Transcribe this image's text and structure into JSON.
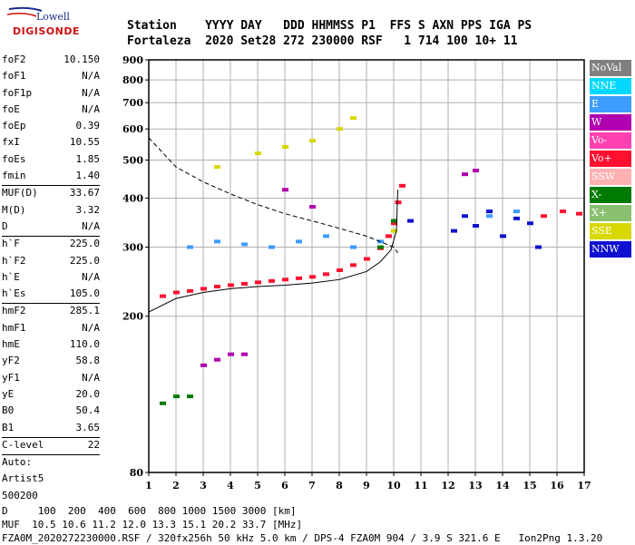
{
  "logo": {
    "line1": "Lowell",
    "line2": "DIGISONDE"
  },
  "header": {
    "line1": "Station    YYYY DAY   DDD HHMMSS P1  FFS S AXN PPS IGA PS",
    "line2": "Fortaleza  2020 Set28 272 230000 RSF   1 714 100 10+ 11"
  },
  "params": [
    {
      "group": [
        {
          "k": "foF2",
          "v": "10.150"
        },
        {
          "k": "foF1",
          "v": "N/A"
        },
        {
          "k": "foF1p",
          "v": "N/A"
        },
        {
          "k": "foE",
          "v": "N/A"
        },
        {
          "k": "foEp",
          "v": "0.39"
        },
        {
          "k": "fxI",
          "v": "10.55"
        },
        {
          "k": "foEs",
          "v": "1.85"
        },
        {
          "k": "fmin",
          "v": "1.40"
        }
      ]
    },
    {
      "group": [
        {
          "k": "MUF(D)",
          "v": "33.67"
        },
        {
          "k": "M(D)",
          "v": "3.32"
        },
        {
          "k": "D",
          "v": "N/A"
        }
      ]
    },
    {
      "group": [
        {
          "k": "h`F",
          "v": "225.0"
        },
        {
          "k": "h`F2",
          "v": "225.0"
        },
        {
          "k": "h`E",
          "v": "N/A"
        },
        {
          "k": "h`Es",
          "v": "105.0"
        }
      ]
    },
    {
      "group": [
        {
          "k": "hmF2",
          "v": "285.1"
        },
        {
          "k": "hmF1",
          "v": "N/A"
        },
        {
          "k": "hmE",
          "v": "110.0"
        },
        {
          "k": "yF2",
          "v": "58.8"
        },
        {
          "k": "yF1",
          "v": "N/A"
        },
        {
          "k": "yE",
          "v": "20.0"
        },
        {
          "k": "B0",
          "v": "50.4"
        },
        {
          "k": "B1",
          "v": "3.65"
        }
      ]
    },
    {
      "group": [
        {
          "k": "C-level",
          "v": "22"
        }
      ]
    },
    {
      "group": [
        {
          "k": "Auto:",
          "v": ""
        },
        {
          "k": "Artist5",
          "v": ""
        },
        {
          "k": "500200",
          "v": ""
        }
      ]
    }
  ],
  "legend": [
    {
      "label": "NoVal",
      "color": "#808080"
    },
    {
      "label": "NNE",
      "color": "#00d8ff"
    },
    {
      "label": "E",
      "color": "#3c9cff"
    },
    {
      "label": "W",
      "color": "#b000b0"
    },
    {
      "label": "Vo-",
      "color": "#ff40b0"
    },
    {
      "label": "Vo+",
      "color": "#ff1030"
    },
    {
      "label": "SSW",
      "color": "#ffb0b0"
    },
    {
      "label": "X-",
      "color": "#007a00"
    },
    {
      "label": "X+",
      "color": "#88c070"
    },
    {
      "label": "SSE",
      "color": "#d8d800"
    },
    {
      "label": "NNW",
      "color": "#1010d0"
    }
  ],
  "footer": {
    "line1": "D     100  200  400  600  800 1000 1500 3000 [km]",
    "line2": "MUF  10.5 10.6 11.2 12.0 13.3 15.1 20.2 33.7 [MHz]",
    "line3": "FZA0M_2020272230000.RSF / 320fx256h 50 kHz 5.0 km / DPS-4 FZA0M 904 / 3.9 S 321.6 E   Ion2Png 1.3.20"
  },
  "chart_data": {
    "type": "scatter",
    "xlim": [
      1,
      17
    ],
    "ylim": [
      80,
      900
    ],
    "xticks": [
      1,
      2,
      3,
      4,
      5,
      6,
      7,
      8,
      9,
      10,
      11,
      12,
      13,
      14,
      15,
      16,
      17
    ],
    "yticks": [
      80,
      200,
      300,
      400,
      500,
      600,
      700,
      800,
      900
    ],
    "grid": true,
    "y_scale": "log",
    "series": [
      {
        "name": "Vo+",
        "points": [
          [
            1.5,
            225
          ],
          [
            2.0,
            230
          ],
          [
            2.5,
            232
          ],
          [
            3.0,
            235
          ],
          [
            3.5,
            238
          ],
          [
            4.0,
            240
          ],
          [
            4.5,
            242
          ],
          [
            5.0,
            244
          ],
          [
            5.5,
            246
          ],
          [
            6.0,
            248
          ],
          [
            6.5,
            250
          ],
          [
            7.0,
            252
          ],
          [
            7.5,
            256
          ],
          [
            8.0,
            262
          ],
          [
            8.5,
            270
          ],
          [
            9.0,
            280
          ],
          [
            9.5,
            298
          ],
          [
            9.8,
            320
          ],
          [
            10.0,
            345
          ],
          [
            10.15,
            390
          ],
          [
            10.3,
            430
          ],
          [
            15.5,
            360
          ],
          [
            16.2,
            370
          ],
          [
            16.8,
            365
          ]
        ]
      },
      {
        "name": "NNW",
        "points": [
          [
            12.2,
            330
          ],
          [
            12.6,
            360
          ],
          [
            13.0,
            340
          ],
          [
            13.5,
            370
          ],
          [
            14.0,
            320
          ],
          [
            14.5,
            355
          ],
          [
            15.0,
            345
          ],
          [
            15.3,
            300
          ],
          [
            10.6,
            350
          ]
        ]
      },
      {
        "name": "E",
        "points": [
          [
            2.5,
            300
          ],
          [
            3.5,
            310
          ],
          [
            4.5,
            305
          ],
          [
            5.5,
            300
          ],
          [
            6.5,
            310
          ],
          [
            7.5,
            320
          ],
          [
            8.5,
            300
          ],
          [
            9.5,
            310
          ],
          [
            13.5,
            360
          ],
          [
            14.5,
            370
          ]
        ]
      },
      {
        "name": "W",
        "points": [
          [
            3.0,
            150
          ],
          [
            3.5,
            155
          ],
          [
            4.0,
            160
          ],
          [
            4.5,
            160
          ],
          [
            12.6,
            460
          ],
          [
            13.0,
            470
          ],
          [
            6.0,
            420
          ],
          [
            7.0,
            380
          ]
        ]
      },
      {
        "name": "X-",
        "points": [
          [
            1.5,
            120
          ],
          [
            2.0,
            125
          ],
          [
            2.5,
            125
          ],
          [
            9.5,
            300
          ],
          [
            10.0,
            350
          ]
        ]
      },
      {
        "name": "SSE",
        "points": [
          [
            3.5,
            480
          ],
          [
            5.0,
            520
          ],
          [
            6.0,
            540
          ],
          [
            7.0,
            560
          ],
          [
            8.0,
            600
          ],
          [
            8.5,
            640
          ],
          [
            10.0,
            330
          ]
        ]
      }
    ],
    "virtual_height_trace": [
      [
        1.0,
        205
      ],
      [
        2.0,
        222
      ],
      [
        3.0,
        230
      ],
      [
        4.0,
        235
      ],
      [
        5.0,
        238
      ],
      [
        6.0,
        240
      ],
      [
        7.0,
        243
      ],
      [
        8.0,
        248
      ],
      [
        9.0,
        260
      ],
      [
        9.5,
        275
      ],
      [
        9.9,
        295
      ],
      [
        10.1,
        330
      ],
      [
        10.15,
        420
      ]
    ],
    "profile_trace": [
      [
        1.0,
        570
      ],
      [
        2.0,
        480
      ],
      [
        3.0,
        440
      ],
      [
        4.0,
        410
      ],
      [
        5.0,
        385
      ],
      [
        6.0,
        365
      ],
      [
        7.0,
        350
      ],
      [
        8.0,
        335
      ],
      [
        9.0,
        320
      ],
      [
        9.5,
        310
      ],
      [
        10.0,
        300
      ],
      [
        10.15,
        290
      ]
    ]
  }
}
